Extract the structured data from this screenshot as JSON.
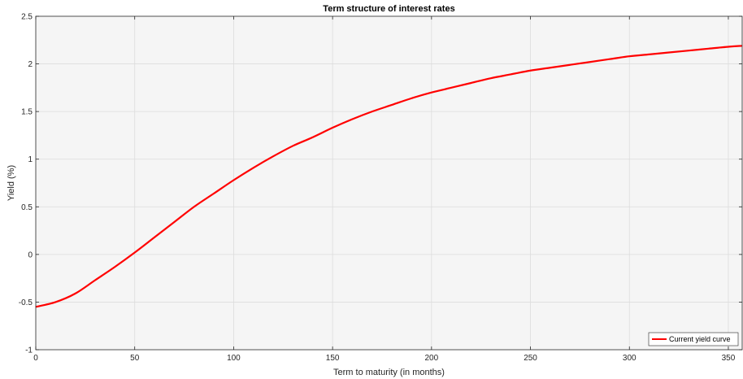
{
  "chart_data": {
    "type": "line",
    "title": "Term structure of interest rates",
    "xlabel": "Term to maturity (in months)",
    "ylabel": "Yield (%)",
    "xlim": [
      0,
      357
    ],
    "ylim": [
      -1,
      2.5
    ],
    "xticks": [
      0,
      50,
      100,
      150,
      200,
      250,
      300,
      350
    ],
    "yticks": [
      -1,
      -0.5,
      0,
      0.5,
      1,
      1.5,
      2,
      2.5
    ],
    "xtick_labels": [
      "0",
      "50",
      "100",
      "150",
      "200",
      "250",
      "300",
      "350"
    ],
    "ytick_labels": [
      "-1",
      "-0.5",
      "0",
      "0.5",
      "1",
      "1.5",
      "2",
      "2.5"
    ],
    "grid": true,
    "legend_position": "bottom-right",
    "background_color": "#f5f5f5",
    "series": [
      {
        "name": "Current yield curve",
        "color": "#ff0000",
        "x": [
          0,
          10,
          20,
          30,
          40,
          50,
          60,
          70,
          80,
          90,
          100,
          110,
          120,
          130,
          140,
          150,
          160,
          170,
          180,
          190,
          200,
          210,
          220,
          230,
          240,
          250,
          260,
          270,
          280,
          290,
          300,
          310,
          320,
          330,
          340,
          350,
          357
        ],
        "y": [
          -0.55,
          -0.5,
          -0.41,
          -0.27,
          -0.13,
          0.02,
          0.18,
          0.34,
          0.5,
          0.64,
          0.78,
          0.91,
          1.03,
          1.14,
          1.23,
          1.33,
          1.42,
          1.5,
          1.57,
          1.64,
          1.7,
          1.75,
          1.8,
          1.85,
          1.89,
          1.93,
          1.96,
          1.99,
          2.02,
          2.05,
          2.08,
          2.1,
          2.12,
          2.14,
          2.16,
          2.18,
          2.19
        ]
      }
    ]
  }
}
